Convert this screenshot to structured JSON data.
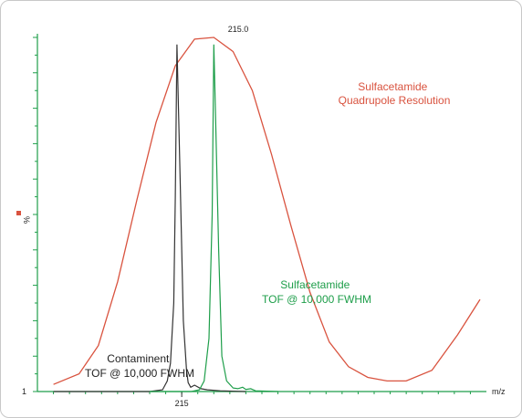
{
  "chart_data": {
    "type": "line",
    "xlabel": "m/z",
    "ylabel": "%",
    "y_min_label": "1",
    "peak_label": "215.0",
    "x_tick_labels": [
      {
        "value": 215,
        "label": "215"
      }
    ],
    "xlim": [
      214.55,
      215.95
    ],
    "ylim": [
      0,
      100
    ],
    "grid": false,
    "colors": {
      "quadrupole": "#d9533f",
      "contaminant": "#333333",
      "sulfacetamide": "#1e9e4a",
      "axis": "#1e9e4a",
      "ylabel_marker": "#d9533f"
    },
    "series": [
      {
        "key": "quadrupole",
        "name": "Sulfacetamide\nQuadrupole Resolution",
        "x": [
          214.6,
          214.68,
          214.74,
          214.8,
          214.86,
          214.92,
          214.98,
          215.04,
          215.1,
          215.16,
          215.22,
          215.28,
          215.34,
          215.4,
          215.46,
          215.52,
          215.58,
          215.64,
          215.7,
          215.78,
          215.86,
          215.93
        ],
        "y": [
          2,
          5,
          13,
          31,
          54,
          76,
          92,
          99.5,
          100,
          96,
          85,
          67,
          47,
          28,
          14,
          7,
          4,
          3,
          3,
          6,
          16,
          26
        ]
      },
      {
        "key": "contaminant",
        "name": "Contaminent\nTOF @ 10,000 FWHM",
        "x": [
          214.6,
          214.9,
          214.94,
          214.955,
          214.965,
          214.975,
          214.98,
          214.985,
          214.995,
          215.005,
          215.015,
          215.02,
          215.028,
          215.04,
          215.06,
          215.08,
          215.12,
          215.2
        ],
        "y": [
          0,
          0,
          0.5,
          3,
          8,
          25,
          55,
          98,
          60,
          20,
          6,
          2.5,
          1.2,
          1.8,
          0.8,
          0.5,
          0.2,
          0
        ]
      },
      {
        "key": "sulfacetamide",
        "name": "Sulfacetamide\nTOF @ 10,000 FWHM",
        "x": [
          214.9,
          215.03,
          215.055,
          215.07,
          215.085,
          215.095,
          215.1,
          215.105,
          215.115,
          215.125,
          215.14,
          215.16,
          215.175,
          215.19,
          215.2,
          215.215,
          215.23,
          215.3
        ],
        "y": [
          0,
          0,
          0.5,
          3,
          15,
          50,
          98,
          80,
          40,
          10,
          3,
          1,
          0.8,
          1.2,
          0.6,
          0.8,
          0.2,
          0
        ]
      }
    ]
  }
}
